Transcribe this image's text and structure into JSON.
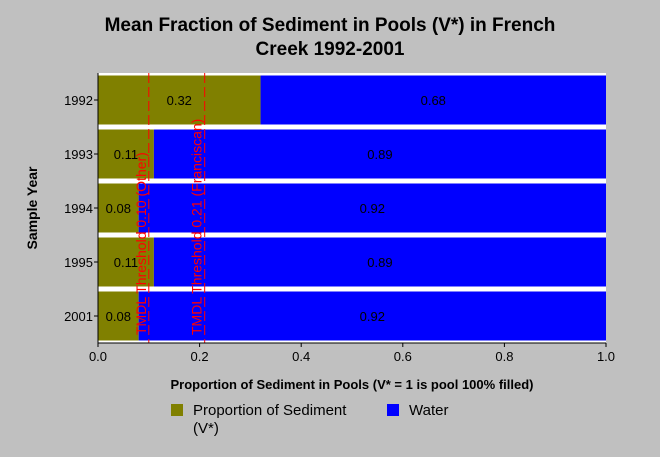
{
  "chart_data": {
    "type": "bar",
    "orientation": "horizontal",
    "stacked": true,
    "title": "Mean Fraction of Sediment in Pools (V*) in French Creek 1992-2001",
    "title_lines": [
      "Mean Fraction of Sediment in Pools (V*) in French",
      "Creek 1992-2001"
    ],
    "xlabel": "Proportion of Sediment in Pools (V* = 1 is pool 100% filled)",
    "ylabel": "Sample Year",
    "xlim": [
      0,
      1
    ],
    "xticks": [
      "0.0",
      "0.2",
      "0.4",
      "0.6",
      "0.8",
      "1.0"
    ],
    "categories": [
      "1992",
      "1993",
      "1994",
      "1995",
      "2001"
    ],
    "series": [
      {
        "name": "Proportion of Sediment (V*)",
        "values": [
          0.32,
          0.11,
          0.08,
          0.11,
          0.08
        ],
        "labels": [
          "0.32",
          "0.11",
          "0.08",
          "0.11",
          "0.08"
        ],
        "color": "#808000"
      },
      {
        "name": "Water",
        "values": [
          0.68,
          0.89,
          0.92,
          0.89,
          0.92
        ],
        "labels": [
          "0.68",
          "0.89",
          "0.92",
          "0.89",
          "0.92"
        ],
        "color": "#0000ff"
      }
    ],
    "thresholds": [
      {
        "value": 0.1,
        "label": "TMDL Threshold 0.10 (Other)",
        "color": "#ff0000"
      },
      {
        "value": 0.21,
        "label": "TMDL Threshold 0.21 (Franciscan)",
        "color": "#ff0000"
      }
    ],
    "grid": false,
    "legend_position": "bottom"
  },
  "legend": {
    "items": [
      {
        "label_lines": [
          "Proportion of Sediment",
          "(V*)"
        ],
        "color": "#808000"
      },
      {
        "label_lines": [
          "Water"
        ],
        "color": "#0000ff"
      }
    ]
  }
}
